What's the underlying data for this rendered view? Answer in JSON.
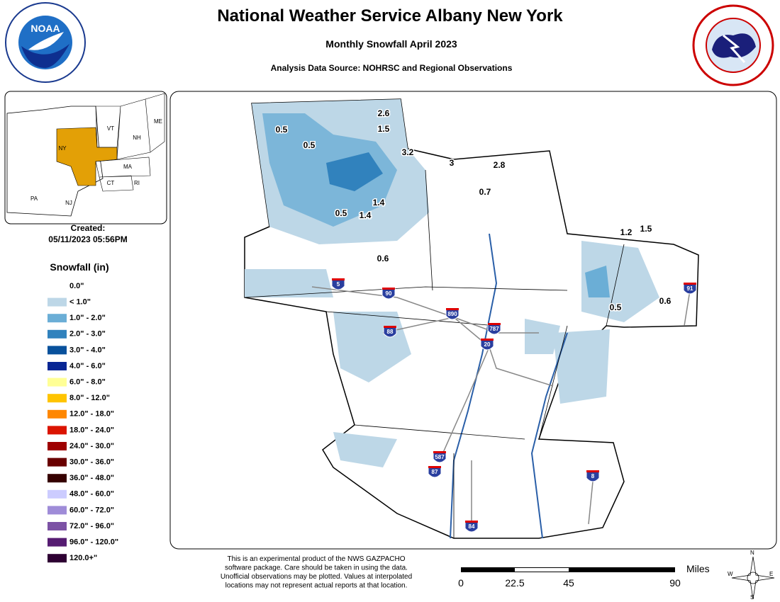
{
  "header": {
    "title": "National Weather Service Albany New York",
    "subtitle": "Monthly Snowfall April 2023",
    "source": "Analysis Data Source: NOHRSC and Regional Observations"
  },
  "inset": {
    "states": [
      "VT",
      "NH",
      "ME",
      "NY",
      "MA",
      "CT",
      "RI",
      "PA",
      "NJ"
    ],
    "created_label": "Created:",
    "created": "05/11/2023 05:56PM"
  },
  "legend": {
    "title": "Snowfall (in)",
    "entries": [
      {
        "label": "0.0\"",
        "color": "#ffffff"
      },
      {
        "label": "< 1.0\"",
        "color": "#bdd7e7"
      },
      {
        "label": "1.0\" - 2.0\"",
        "color": "#6baed6"
      },
      {
        "label": "2.0\" - 3.0\"",
        "color": "#3182bd"
      },
      {
        "label": "3.0\" - 4.0\"",
        "color": "#08519c"
      },
      {
        "label": "4.0\" - 6.0\"",
        "color": "#082694"
      },
      {
        "label": "6.0\" - 8.0\"",
        "color": "#ffff96"
      },
      {
        "label": "8.0\" - 12.0\"",
        "color": "#ffc400"
      },
      {
        "label": "12.0\" - 18.0\"",
        "color": "#ff8700"
      },
      {
        "label": "18.0\" - 24.0\"",
        "color": "#db1400"
      },
      {
        "label": "24.0\" - 30.0\"",
        "color": "#9e0000"
      },
      {
        "label": "30.0\" - 36.0\"",
        "color": "#690000"
      },
      {
        "label": "36.0\" - 48.0\"",
        "color": "#360000"
      },
      {
        "label": "48.0\" - 60.0\"",
        "color": "#ccccff"
      },
      {
        "label": "60.0\" - 72.0\"",
        "color": "#9f8cd8"
      },
      {
        "label": "72.0\" - 96.0\"",
        "color": "#7c52a5"
      },
      {
        "label": "96.0\" - 120.0\"",
        "color": "#561c72"
      },
      {
        "label": "120.0+\"",
        "color": "#2e0033"
      }
    ]
  },
  "observations": [
    "2.6",
    "1.5",
    "0.5",
    "0.5",
    "3.2",
    "3",
    "2.8",
    "0.7",
    "1.4",
    "0.5",
    "1.4",
    "0.6",
    "1.2",
    "1.5",
    "0.5",
    "0.6"
  ],
  "shields": [
    "5",
    "90",
    "890",
    "88",
    "787",
    "20",
    "587",
    "87",
    "84",
    "91",
    "8"
  ],
  "footer": {
    "disclaimer": [
      "This is an experimental product of the NWS GAZPACHO",
      "software package. Care should be taken in using the data.",
      "Unofficial observations may be plotted. Values at interpolated",
      "locations may not represent actual reports at that location."
    ],
    "scale_labels": [
      "0",
      "22.5",
      "45",
      "90"
    ],
    "scale_unit": "Miles",
    "compass": [
      "N",
      "S",
      "E",
      "W"
    ]
  }
}
